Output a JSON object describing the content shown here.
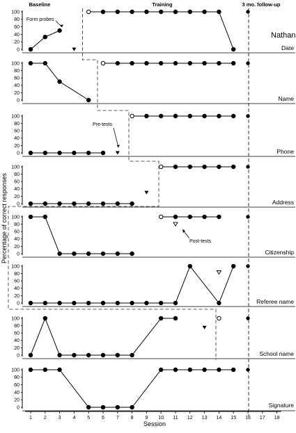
{
  "chart_data": {
    "type": "scatter",
    "subject": "Nathan",
    "xlabel": "Session",
    "ylabel": "Percentage of correct responses",
    "xlim": [
      0.5,
      18.5
    ],
    "ylim": [
      0,
      100
    ],
    "x_ticks": [
      "1",
      "2",
      "3",
      "4",
      "5",
      "6",
      "7",
      "8",
      "9",
      "10",
      "11",
      "12",
      "13",
      "14",
      "15",
      "16",
      "17",
      "18"
    ],
    "y_ticks": [
      "0",
      "20",
      "40",
      "60",
      "80",
      "100"
    ],
    "phases": {
      "baseline": "Baseline",
      "training": "Training",
      "followup": "3 mo. follow-up"
    },
    "followup_session": 16,
    "annotations": {
      "form_probes": "Form probes",
      "pre_tests": "Pre-tests",
      "post_tests": "Post-tests"
    },
    "panels": [
      {
        "name": "Date",
        "phase_change_after": 4.5,
        "baseline": [
          [
            1,
            0
          ],
          [
            2,
            33
          ],
          [
            3,
            50
          ]
        ],
        "training": [
          [
            5,
            100
          ],
          [
            6,
            100
          ],
          [
            7,
            100
          ],
          [
            8,
            100
          ],
          [
            9,
            100
          ],
          [
            10,
            100
          ],
          [
            11,
            100
          ],
          [
            12,
            100
          ],
          [
            13,
            100
          ],
          [
            14,
            100
          ],
          [
            15,
            0
          ]
        ],
        "pre_tests": [
          [
            4,
            0
          ]
        ],
        "post_tests": [],
        "open_probes": [
          [
            5,
            100
          ]
        ],
        "followup": [
          [
            16,
            100
          ]
        ]
      },
      {
        "name": "Name",
        "phase_change_after": 5.5,
        "baseline": [
          [
            1,
            100
          ],
          [
            2,
            100
          ],
          [
            3,
            50
          ],
          [
            5,
            0
          ]
        ],
        "training": [
          [
            6,
            100
          ],
          [
            7,
            100
          ],
          [
            8,
            100
          ],
          [
            9,
            100
          ],
          [
            10,
            100
          ],
          [
            11,
            100
          ],
          [
            12,
            100
          ],
          [
            13,
            100
          ],
          [
            14,
            100
          ],
          [
            15,
            100
          ]
        ],
        "pre_tests": [],
        "post_tests": [],
        "open_probes": [
          [
            6,
            100
          ]
        ],
        "followup": [
          [
            16,
            100
          ]
        ]
      },
      {
        "name": "Phone",
        "phase_change_after": 7.5,
        "baseline": [
          [
            1,
            0
          ],
          [
            2,
            0
          ],
          [
            3,
            0
          ],
          [
            4,
            0
          ],
          [
            5,
            0
          ],
          [
            6,
            0
          ]
        ],
        "training": [
          [
            8,
            100
          ],
          [
            9,
            100
          ],
          [
            10,
            100
          ],
          [
            11,
            100
          ],
          [
            12,
            100
          ],
          [
            13,
            100
          ],
          [
            14,
            100
          ],
          [
            15,
            100
          ]
        ],
        "pre_tests": [
          [
            7,
            0
          ]
        ],
        "post_tests": [],
        "open_probes": [
          [
            8,
            100
          ]
        ],
        "followup": [
          [
            16,
            100
          ]
        ]
      },
      {
        "name": "Address",
        "phase_change_after": 9.5,
        "baseline": [
          [
            1,
            0
          ],
          [
            2,
            0
          ],
          [
            3,
            0
          ],
          [
            4,
            0
          ],
          [
            5,
            0
          ],
          [
            6,
            0
          ],
          [
            7,
            0
          ],
          [
            8,
            0
          ]
        ],
        "training": [
          [
            10,
            100
          ],
          [
            11,
            100
          ],
          [
            12,
            100
          ],
          [
            13,
            100
          ],
          [
            14,
            100
          ],
          [
            15,
            100
          ]
        ],
        "pre_tests": [
          [
            9,
            30
          ]
        ],
        "post_tests": [],
        "open_probes": [
          [
            10,
            100
          ]
        ],
        "followup": [
          [
            16,
            100
          ]
        ]
      },
      {
        "name": "Citizenship",
        "phase_change_after": 9.5,
        "baseline": [
          [
            1,
            100
          ],
          [
            2,
            100
          ],
          [
            3,
            0
          ],
          [
            4,
            0
          ],
          [
            5,
            0
          ],
          [
            6,
            0
          ],
          [
            7,
            0
          ],
          [
            8,
            0
          ]
        ],
        "training": [
          [
            10,
            100
          ],
          [
            11,
            100
          ],
          [
            12,
            100
          ],
          [
            13,
            100
          ],
          [
            14,
            100
          ]
        ],
        "pre_tests": [],
        "post_tests": [
          [
            11,
            80
          ]
        ],
        "open_probes": [
          [
            10,
            100
          ]
        ],
        "followup": [
          [
            16,
            100
          ]
        ]
      },
      {
        "name": "Referee name",
        "phase_change_after": 0.5,
        "baseline": [],
        "training": [
          [
            1,
            0
          ],
          [
            2,
            0
          ],
          [
            3,
            0
          ],
          [
            4,
            0
          ],
          [
            5,
            0
          ],
          [
            6,
            0
          ],
          [
            7,
            0
          ],
          [
            8,
            0
          ],
          [
            9,
            0
          ],
          [
            10,
            0
          ],
          [
            11,
            0
          ],
          [
            12,
            100
          ],
          [
            14,
            0
          ],
          [
            15,
            100
          ]
        ],
        "pre_tests": [],
        "post_tests": [
          [
            14,
            83
          ]
        ],
        "open_probes": [],
        "followup": [
          [
            16,
            100
          ]
        ]
      },
      {
        "name": "School name",
        "phase_change_after": 13.5,
        "baseline": [
          [
            1,
            0
          ],
          [
            2,
            100
          ],
          [
            3,
            0
          ],
          [
            4,
            0
          ],
          [
            5,
            0
          ],
          [
            6,
            0
          ],
          [
            7,
            0
          ],
          [
            8,
            0
          ],
          [
            10,
            100
          ],
          [
            11,
            100
          ]
        ],
        "training": [],
        "pre_tests": [
          [
            13,
            75
          ]
        ],
        "post_tests": [],
        "open_probes": [
          [
            14,
            100
          ]
        ],
        "followup": [
          [
            16,
            100
          ]
        ]
      },
      {
        "name": "Signature",
        "phase_change_after": null,
        "baseline": [
          [
            1,
            100
          ],
          [
            2,
            100
          ],
          [
            3,
            100
          ],
          [
            5,
            0
          ],
          [
            6,
            0
          ],
          [
            7,
            0
          ],
          [
            8,
            0
          ],
          [
            10,
            100
          ],
          [
            11,
            100
          ],
          [
            12,
            100
          ],
          [
            13,
            100
          ],
          [
            14,
            100
          ],
          [
            15,
            100
          ]
        ],
        "training": [],
        "pre_tests": [],
        "post_tests": [],
        "open_probes": [],
        "followup": [
          [
            16,
            100
          ]
        ]
      }
    ]
  }
}
